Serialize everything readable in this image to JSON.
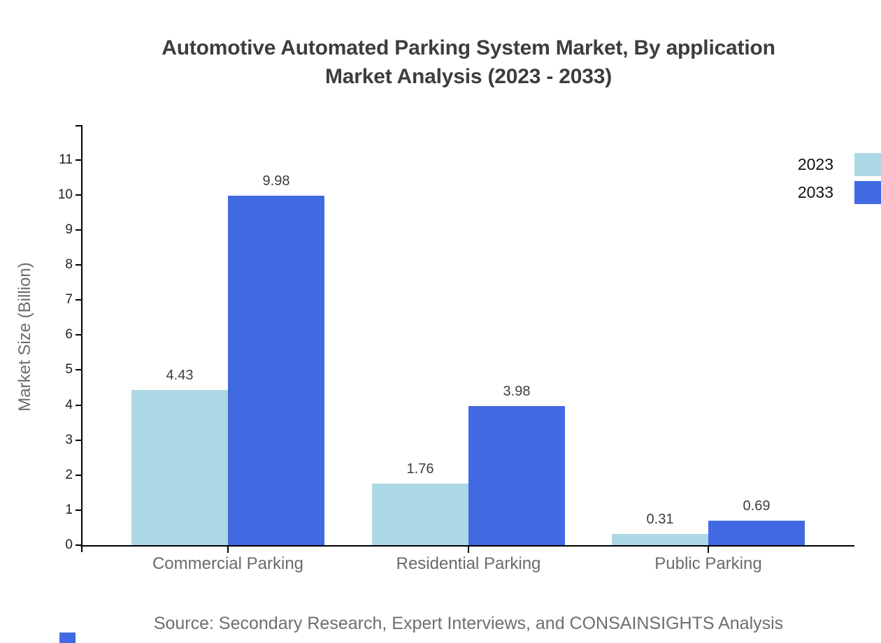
{
  "title": {
    "line1": "Automotive Automated Parking System Market, By application",
    "line2": "Market Analysis (2023 - 2033)"
  },
  "source": "Source: Secondary Research, Expert Interviews, and CONSAINSIGHTS Analysis",
  "chart_data": {
    "type": "bar",
    "categories": [
      "Commercial Parking",
      "Residential Parking",
      "Public Parking"
    ],
    "series": [
      {
        "name": "2023",
        "color": "#ADD8E6",
        "values": [
          4.43,
          1.76,
          0.31
        ]
      },
      {
        "name": "2033",
        "color": "#4169E1",
        "values": [
          9.98,
          3.98,
          0.69
        ]
      }
    ],
    "title": "Automotive Automated Parking System Market, By application Market Analysis (2023 - 2033)",
    "xlabel": "",
    "ylabel": "Market Size (Billion)",
    "ylim": [
      0,
      12
    ],
    "yticks": [
      0,
      1,
      2,
      3,
      4,
      5,
      6,
      7,
      8,
      9,
      10,
      11
    ],
    "grid": false,
    "legend_position": "top-right",
    "value_labels": true
  },
  "colors": {
    "axis": "#000000",
    "title_text": "#3d3d3d",
    "tick_label": "#222222",
    "category_label": "#6b6b6b",
    "value_label": "#3d3d3d",
    "source_text": "#6e6e6e",
    "series_2023": "#ADD8E6",
    "series_2033": "#4169E1"
  }
}
